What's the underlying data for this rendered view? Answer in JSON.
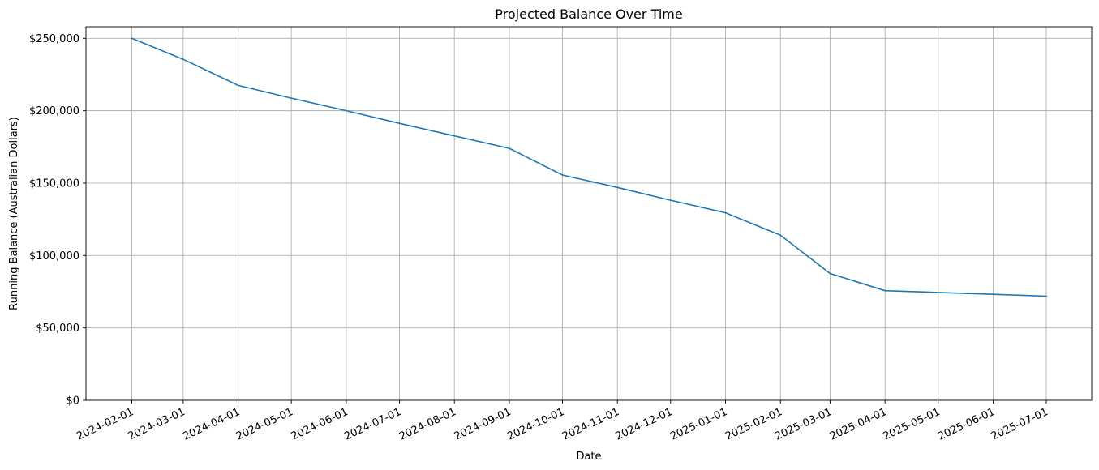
{
  "chart_data": {
    "type": "line",
    "title": "Projected Balance Over Time",
    "xlabel": "Date",
    "ylabel": "Running Balance (Australian Dollars)",
    "ylim": [
      0,
      258000
    ],
    "grid": true,
    "series_color": "#1f77b4",
    "grid_color": "#b0b0b0",
    "x_ticks": [
      "2024-02-01",
      "2024-03-01",
      "2024-04-01",
      "2024-05-01",
      "2024-06-01",
      "2024-07-01",
      "2024-08-01",
      "2024-09-01",
      "2024-10-01",
      "2024-11-01",
      "2024-12-01",
      "2025-01-01",
      "2025-02-01",
      "2025-03-01",
      "2025-04-01",
      "2025-05-01",
      "2025-06-01",
      "2025-07-01"
    ],
    "y_ticks": [
      {
        "value": 0,
        "label": "$0"
      },
      {
        "value": 50000,
        "label": "$50,000"
      },
      {
        "value": 100000,
        "label": "$100,000"
      },
      {
        "value": 150000,
        "label": "$150,000"
      },
      {
        "value": 200000,
        "label": "$200,000"
      },
      {
        "value": 250000,
        "label": "$250,000"
      }
    ],
    "x": [
      "2024-02-01",
      "2024-03-01",
      "2024-04-01",
      "2024-05-01",
      "2024-06-01",
      "2024-07-01",
      "2024-08-01",
      "2024-09-01",
      "2024-10-01",
      "2024-11-01",
      "2024-12-01",
      "2025-01-01",
      "2025-02-01",
      "2025-03-01",
      "2025-04-01",
      "2025-05-01",
      "2025-06-01",
      "2025-07-01"
    ],
    "values": [
      250000,
      235500,
      217500,
      208700,
      200000,
      191300,
      182600,
      174000,
      155600,
      147000,
      138200,
      129500,
      114000,
      87600,
      75700,
      74500,
      73200,
      71900
    ]
  }
}
